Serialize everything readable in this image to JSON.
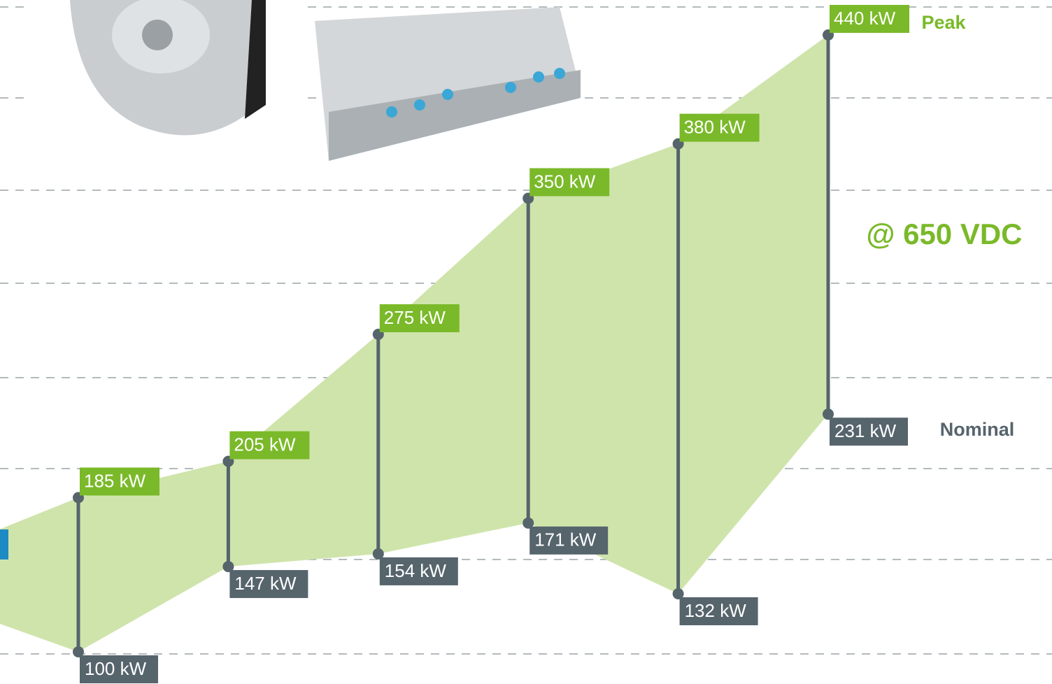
{
  "chart_data": {
    "type": "range",
    "annotation": "@ 650 VDC",
    "series": [
      {
        "name": "Peak",
        "color": "#7ab929",
        "values": [
          185,
          205,
          275,
          350,
          380,
          440
        ],
        "value_labels": [
          "185 kW",
          "205 kW",
          "275 kW",
          "350 kW",
          "380 kW",
          "440 kW"
        ]
      },
      {
        "name": "Nominal",
        "color": "#56646c",
        "values": [
          100,
          147,
          154,
          171,
          132,
          231
        ],
        "value_labels": [
          "100 kW",
          "147 kW",
          "154 kW",
          "171 kW",
          "132 kW",
          "231 kW"
        ]
      }
    ],
    "area_color": "#cfe4ab"
  }
}
